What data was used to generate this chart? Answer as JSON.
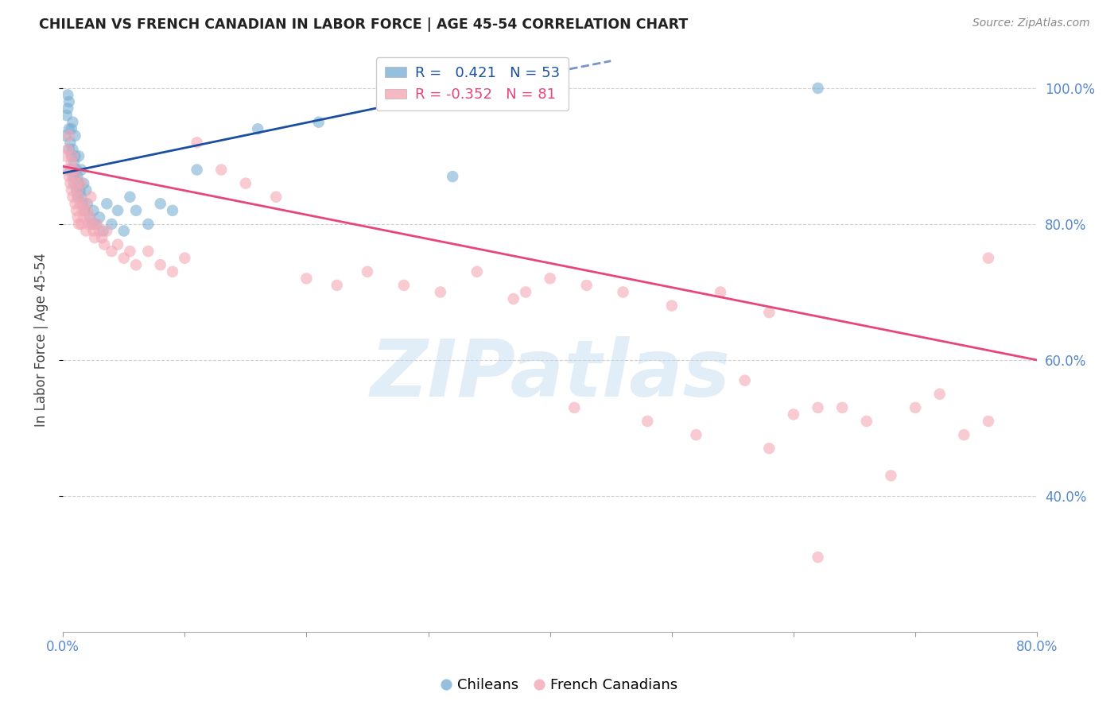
{
  "title": "CHILEAN VS FRENCH CANADIAN IN LABOR FORCE | AGE 45-54 CORRELATION CHART",
  "source": "Source: ZipAtlas.com",
  "ylabel": "In Labor Force | Age 45-54",
  "xlim": [
    0.0,
    0.8
  ],
  "ylim": [
    0.2,
    1.06
  ],
  "yticks": [
    0.4,
    0.6,
    0.8,
    1.0
  ],
  "ytick_labels": [
    "40.0%",
    "60.0%",
    "80.0%",
    "100.0%"
  ],
  "xticks": [
    0.0,
    0.1,
    0.2,
    0.3,
    0.4,
    0.5,
    0.6,
    0.7,
    0.8
  ],
  "xtick_labels": [
    "0.0%",
    "",
    "",
    "",
    "",
    "",
    "",
    "",
    "80.0%"
  ],
  "blue_R": 0.421,
  "blue_N": 53,
  "pink_R": -0.352,
  "pink_N": 81,
  "blue_color": "#7BAFD4",
  "pink_color": "#F4A7B5",
  "blue_line_color": "#1A4FA0",
  "pink_line_color": "#E8457A",
  "watermark_color": "#C5DCF0",
  "background_color": "#FFFFFF",
  "grid_color": "#BBBBBB",
  "title_color": "#222222",
  "axis_label_color": "#444444",
  "right_axis_color": "#5588CC",
  "blue_scatter_x": [
    0.002,
    0.003,
    0.004,
    0.004,
    0.005,
    0.005,
    0.005,
    0.006,
    0.006,
    0.007,
    0.007,
    0.008,
    0.008,
    0.008,
    0.009,
    0.009,
    0.01,
    0.01,
    0.01,
    0.011,
    0.011,
    0.012,
    0.012,
    0.013,
    0.013,
    0.014,
    0.015,
    0.015,
    0.016,
    0.017,
    0.018,
    0.019,
    0.02,
    0.022,
    0.024,
    0.025,
    0.027,
    0.03,
    0.033,
    0.036,
    0.04,
    0.045,
    0.05,
    0.055,
    0.06,
    0.07,
    0.08,
    0.09,
    0.11,
    0.16,
    0.21,
    0.32,
    0.62
  ],
  "blue_scatter_y": [
    0.93,
    0.96,
    0.97,
    0.99,
    0.94,
    0.91,
    0.98,
    0.92,
    0.88,
    0.94,
    0.9,
    0.91,
    0.87,
    0.95,
    0.89,
    0.86,
    0.9,
    0.87,
    0.93,
    0.88,
    0.85,
    0.87,
    0.84,
    0.86,
    0.9,
    0.85,
    0.84,
    0.88,
    0.83,
    0.86,
    0.82,
    0.85,
    0.83,
    0.81,
    0.8,
    0.82,
    0.8,
    0.81,
    0.79,
    0.83,
    0.8,
    0.82,
    0.79,
    0.84,
    0.82,
    0.8,
    0.83,
    0.82,
    0.88,
    0.94,
    0.95,
    0.87,
    1.0
  ],
  "pink_scatter_x": [
    0.002,
    0.003,
    0.004,
    0.005,
    0.005,
    0.006,
    0.007,
    0.007,
    0.008,
    0.008,
    0.009,
    0.01,
    0.01,
    0.011,
    0.011,
    0.012,
    0.012,
    0.013,
    0.013,
    0.014,
    0.015,
    0.015,
    0.016,
    0.017,
    0.018,
    0.019,
    0.02,
    0.021,
    0.022,
    0.023,
    0.024,
    0.025,
    0.026,
    0.028,
    0.03,
    0.032,
    0.034,
    0.036,
    0.04,
    0.045,
    0.05,
    0.055,
    0.06,
    0.07,
    0.08,
    0.09,
    0.1,
    0.11,
    0.13,
    0.15,
    0.175,
    0.2,
    0.225,
    0.25,
    0.28,
    0.31,
    0.34,
    0.37,
    0.4,
    0.43,
    0.46,
    0.5,
    0.54,
    0.58,
    0.62,
    0.66,
    0.7,
    0.74,
    0.76,
    0.38,
    0.42,
    0.48,
    0.52,
    0.56,
    0.6,
    0.64,
    0.68,
    0.72,
    0.76,
    0.62,
    0.58
  ],
  "pink_scatter_y": [
    0.9,
    0.88,
    0.91,
    0.87,
    0.93,
    0.86,
    0.89,
    0.85,
    0.9,
    0.84,
    0.88,
    0.87,
    0.83,
    0.86,
    0.82,
    0.85,
    0.81,
    0.84,
    0.8,
    0.83,
    0.86,
    0.8,
    0.82,
    0.81,
    0.83,
    0.79,
    0.82,
    0.8,
    0.81,
    0.84,
    0.8,
    0.79,
    0.78,
    0.8,
    0.79,
    0.78,
    0.77,
    0.79,
    0.76,
    0.77,
    0.75,
    0.76,
    0.74,
    0.76,
    0.74,
    0.73,
    0.75,
    0.92,
    0.88,
    0.86,
    0.84,
    0.72,
    0.71,
    0.73,
    0.71,
    0.7,
    0.73,
    0.69,
    0.72,
    0.71,
    0.7,
    0.68,
    0.7,
    0.67,
    0.53,
    0.51,
    0.53,
    0.49,
    0.75,
    0.7,
    0.53,
    0.51,
    0.49,
    0.57,
    0.52,
    0.53,
    0.43,
    0.55,
    0.51,
    0.31,
    0.47
  ]
}
